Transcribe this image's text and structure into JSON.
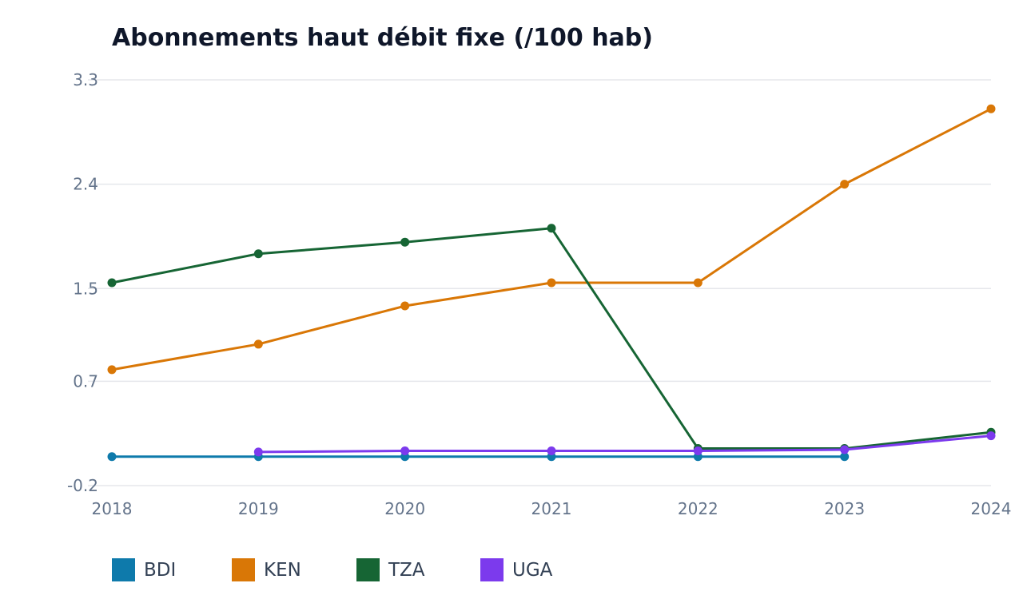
{
  "chart_data": {
    "type": "line",
    "title": "Abonnements haut débit fixe (/100 hab)",
    "xlabel": "",
    "ylabel": "",
    "x": [
      2018,
      2019,
      2020,
      2021,
      2022,
      2023,
      2024
    ],
    "x_tick_labels": [
      "2018",
      "2019",
      "2020",
      "2021",
      "2022",
      "2023",
      "2024"
    ],
    "y_ticks": [
      -0.2,
      0.7,
      1.5,
      2.4,
      3.3
    ],
    "y_tick_labels": [
      "-0.2",
      "0.7",
      "1.5",
      "2.4",
      "3.3"
    ],
    "ylim": [
      -0.2,
      3.3
    ],
    "grid": true,
    "legend_position": "bottom-left",
    "series": [
      {
        "name": "BDI",
        "color": "#0e7aab",
        "values": [
          0.05,
          0.05,
          0.05,
          0.05,
          0.05,
          0.05,
          null
        ]
      },
      {
        "name": "KEN",
        "color": "#d97706",
        "values": [
          0.8,
          1.02,
          1.35,
          1.55,
          1.55,
          2.4,
          3.05
        ]
      },
      {
        "name": "TZA",
        "color": "#166534",
        "values": [
          1.55,
          1.8,
          1.9,
          2.02,
          0.12,
          0.12,
          0.26
        ]
      },
      {
        "name": "UGA",
        "color": "#7c3aed",
        "values": [
          null,
          0.09,
          0.1,
          0.1,
          0.1,
          0.11,
          0.23
        ]
      }
    ]
  }
}
